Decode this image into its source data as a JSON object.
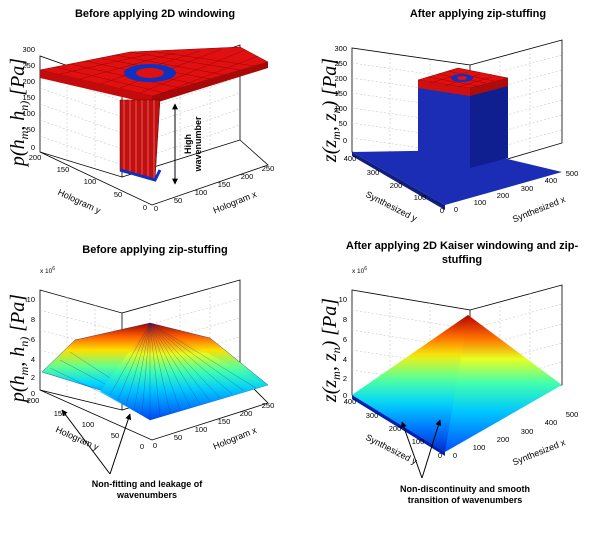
{
  "chart_data": [
    {
      "type": "surface",
      "title": "Before applying 2D windowing",
      "zlabel": "p(h_m, h_n) [Pa]",
      "xlabel": "Hologram x",
      "ylabel": "Hologram y",
      "xticks": [
        "0",
        "50",
        "100",
        "150",
        "200",
        "250"
      ],
      "yticks": [
        "0",
        "50",
        "100",
        "150",
        "200"
      ],
      "zticks": [
        "0",
        "50",
        "100",
        "150",
        "200",
        "250",
        "300"
      ],
      "zlim": [
        0,
        300
      ],
      "annotation": "High wavenumber",
      "colors": {
        "plateau": "#e01010",
        "center": "#1030c0"
      }
    },
    {
      "type": "surface",
      "title": "After applying zip-stuffing",
      "zlabel": "z(z_m, z_n) [Pa]",
      "xlabel": "Synthesized x",
      "ylabel": "Synthesized y",
      "xticks": [
        "0",
        "100",
        "200",
        "300",
        "400",
        "500"
      ],
      "yticks": [
        "0",
        "100",
        "200",
        "300",
        "400"
      ],
      "zticks": [
        "0",
        "50",
        "100",
        "150",
        "200",
        "250",
        "300"
      ],
      "zlim": [
        0,
        300
      ],
      "colors": {
        "plateau": "#e01010",
        "floor": "#1a2db4"
      }
    },
    {
      "type": "surface",
      "title": "Before applying zip-stuffing",
      "zlabel": "p(h_m, h_n) [Pa]",
      "xlabel": "Hologram x",
      "ylabel": "Hologram y",
      "xticks": [
        "0",
        "50",
        "100",
        "150",
        "200",
        "250"
      ],
      "yticks": [
        "0",
        "50",
        "100",
        "150",
        "200"
      ],
      "zticks": [
        "0",
        "2",
        "4",
        "6",
        "8",
        "10"
      ],
      "zexponent": "x 10",
      "zexponent_power": "6",
      "zlim": [
        0,
        10
      ],
      "annotation": "Non-fitting  and leakage of wavenumbers",
      "colormap": "jet"
    },
    {
      "type": "surface",
      "title": "After applying 2D Kaiser windowing and zip-stuffing",
      "zlabel": "z(z_m, z_n) [Pa]",
      "xlabel": "Synthesized x",
      "ylabel": "Synthesized y",
      "xticks": [
        "0",
        "100",
        "200",
        "300",
        "400",
        "500"
      ],
      "yticks": [
        "0",
        "100",
        "200",
        "300",
        "400"
      ],
      "zticks": [
        "0",
        "2",
        "4",
        "6",
        "8",
        "10"
      ],
      "zexponent": "x 10",
      "zexponent_power": "6",
      "zlim": [
        0,
        10
      ],
      "annotation": "Non-discontinuity and smooth transition of wavenumbers",
      "colormap": "jet"
    }
  ],
  "titles": {
    "p1": "Before applying 2D windowing",
    "p2": "After applying zip-stuffing",
    "p3": "Before applying zip-stuffing",
    "p4_line1": "After applying 2D Kaiser windowing and zip-",
    "p4_line2": "stuffing"
  },
  "annotations": {
    "high_1": "High",
    "high_2": "wavenumber",
    "leak_1": "Non-fitting  and leakage of",
    "leak_2": "wavenumbers",
    "smooth_1": "Non-discontinuity and smooth",
    "smooth_2": "transition of wavenumbers"
  }
}
